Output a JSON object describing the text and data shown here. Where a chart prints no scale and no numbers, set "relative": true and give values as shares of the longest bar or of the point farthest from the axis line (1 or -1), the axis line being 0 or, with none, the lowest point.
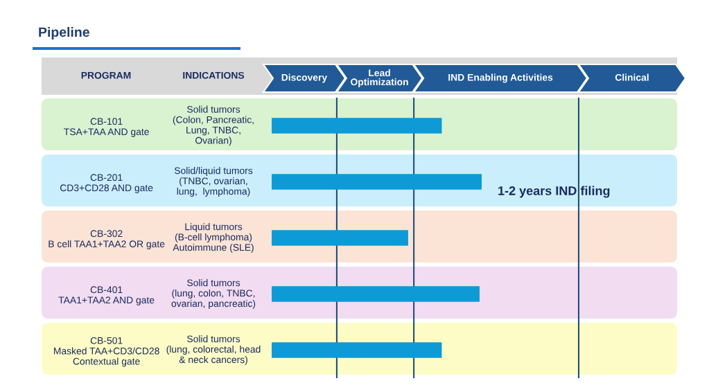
{
  "chart_data": {
    "type": "bar",
    "orientation": "horizontal",
    "relative": true,
    "title": "Pipeline",
    "categories": [
      "CB-101\nTSA+TAA AND gate",
      "CB-201\nCD3+CD28 AND gate",
      "CB-302\nB cell TAA1+TAA2 OR gate",
      "CB-401\nTAA1+TAA2 AND gate",
      "CB-501\nMasked TAA+CD3/CD28\nContextual gate"
    ],
    "y2_categories": [
      "Solid tumors\n(Colon, Pancreatic,\nLung, TNBC,\nOvarian)",
      "Solid/liquid tumors\n(TNBC, ovarian,\nlung,  lymphoma)",
      "Liquid tumors\n(B-cell lymphoma)\nAutoimmune (SLE)",
      "Solid tumors\n(lung, colon, TNBC,\novarian, pancreatic)",
      "Solid tumors\n(lung, colorectal, head\n& neck cancers)"
    ],
    "values": [
      0.81,
      1,
      0.65,
      0.99,
      0.81
    ],
    "color": "#0e9ad6",
    "ref_lines": [
      {
        "axis": "x",
        "value": 0.31,
        "color": "#1f4e79"
      },
      {
        "axis": "x",
        "value": 0.677,
        "color": "#1f4e79"
      },
      {
        "axis": "x",
        "value": 1.462,
        "color": "#1f4e79"
      }
    ],
    "annotations": [
      "Discovery",
      "Lead\nOptimization",
      "IND Enabling Activities",
      "Clinical",
      "PROGRAM",
      "INDICATIONS",
      "1-2 years IND filing"
    ],
    "grid": false,
    "legend": false
  }
}
